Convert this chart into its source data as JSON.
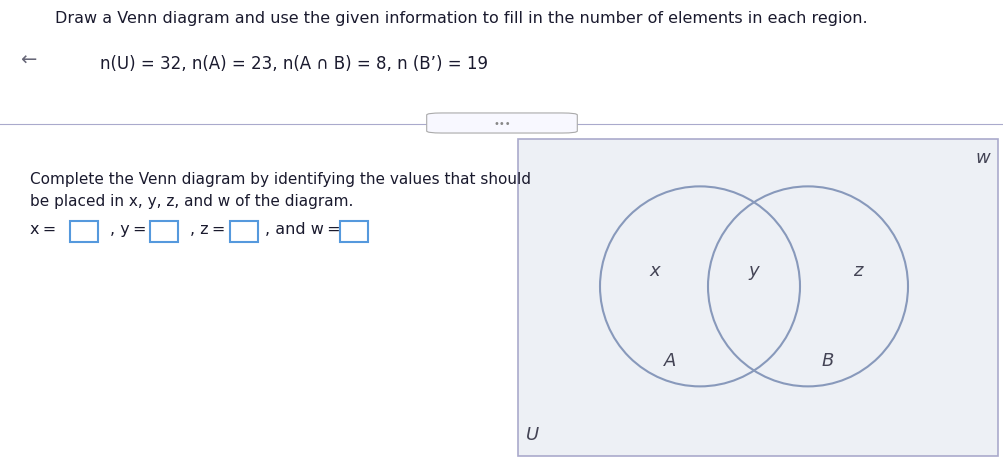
{
  "title_line1": "Draw a Venn diagram and use the given information to fill in the number of elements in each region.",
  "given_info": "n(U) = 32, n(A) = 23, n(A ∩ B) = 8, n (B’) = 19",
  "instruction_line1": "Complete the Venn diagram by identifying the values that should",
  "instruction_line2": "be placed in x, y, z, and w of the diagram.",
  "bg_top": "#e8eef6",
  "bg_white": "#ffffff",
  "bg_panel": "#f5f6fa",
  "bg_venn": "#edf0f5",
  "circle_color": "#8899bb",
  "text_dark": "#1a1a2e",
  "text_medium": "#444455",
  "box_color": "#5599dd",
  "label_U": "U",
  "label_w": "w",
  "label_x": "x",
  "label_y": "y",
  "label_z": "z",
  "label_A": "A",
  "label_B": "B"
}
